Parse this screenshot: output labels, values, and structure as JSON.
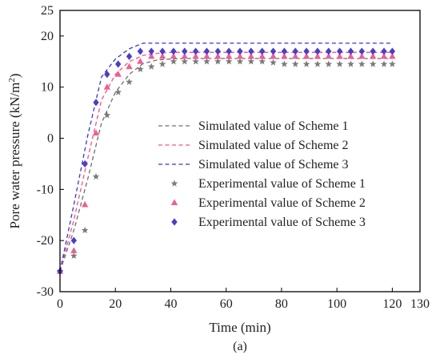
{
  "chart_data": {
    "type": "line",
    "title": "",
    "subtitle": "",
    "xlabel": "Time (min)",
    "ylabel": "Pore water pressure (kN/m²)",
    "ylabel_parts": {
      "main": "Pore water pressure (kN/m",
      "sup": "2",
      "close": ")"
    },
    "xlim": [
      0,
      130
    ],
    "ylim": [
      -30,
      25
    ],
    "x_ticks": [
      0,
      20,
      40,
      60,
      80,
      100,
      120,
      130
    ],
    "y_ticks": [
      -30,
      -20,
      -10,
      0,
      10,
      20,
      25
    ],
    "grid": false,
    "legend_position": "center-right",
    "caption": "(a)",
    "series": [
      {
        "name": "Simulated value of Scheme 1",
        "kind": "line",
        "color": "#6e6e6e",
        "x": [
          0,
          5,
          10,
          15,
          20,
          25,
          30,
          35,
          40,
          45,
          50,
          60,
          80,
          100,
          120
        ],
        "y": [
          -26,
          -18,
          -8,
          3,
          9,
          12.5,
          14.6,
          15.3,
          15.5,
          15.6,
          15.6,
          15.6,
          15.6,
          15.6,
          15.6
        ]
      },
      {
        "name": "Simulated value of Scheme 2",
        "kind": "line",
        "color": "#f3508a",
        "x": [
          0,
          5,
          10,
          15,
          20,
          25,
          30,
          35,
          40,
          45,
          50,
          60,
          80,
          100,
          120
        ],
        "y": [
          -26,
          -16,
          -4,
          7.5,
          12.5,
          15,
          16.2,
          16.6,
          16.8,
          16.8,
          16.8,
          16.8,
          16.8,
          16.8,
          16.8
        ]
      },
      {
        "name": "Simulated value of Scheme 3",
        "kind": "line",
        "color": "#3b37c8",
        "x": [
          0,
          5,
          10,
          15,
          20,
          25,
          30,
          35,
          40,
          45,
          50,
          60,
          80,
          100,
          120
        ],
        "y": [
          -26,
          -13,
          0.5,
          12,
          15.5,
          17.5,
          18.6,
          18.6,
          18.6,
          18.6,
          18.6,
          18.6,
          18.6,
          18.6,
          18.6
        ]
      },
      {
        "name": "Experimental value of Scheme 1",
        "kind": "marker",
        "marker": "star",
        "color": "#7a7a7a",
        "x": [
          0,
          5,
          9,
          13,
          17,
          21,
          25,
          29,
          33,
          37,
          41,
          45,
          49,
          53,
          57,
          61,
          65,
          69,
          73,
          77,
          81,
          85,
          89,
          93,
          97,
          101,
          105,
          109,
          113,
          117,
          120
        ],
        "y": [
          -26,
          -23,
          -18,
          -7.5,
          4.5,
          9,
          11,
          13.5,
          14,
          14.5,
          15,
          15,
          15,
          15,
          15,
          15,
          15,
          15,
          15,
          14.8,
          14.5,
          14.5,
          14.5,
          14.5,
          14.5,
          14.5,
          14.5,
          14.5,
          14.5,
          14.5,
          14.5
        ]
      },
      {
        "name": "Experimental value of Scheme 2",
        "kind": "marker",
        "marker": "triangle",
        "color": "#ef5d97",
        "x": [
          0,
          5,
          9,
          13,
          17,
          21,
          25,
          29,
          33,
          37,
          41,
          45,
          49,
          53,
          57,
          61,
          65,
          69,
          73,
          77,
          81,
          85,
          89,
          93,
          97,
          101,
          105,
          109,
          113,
          117,
          120
        ],
        "y": [
          -26,
          -22,
          -13,
          1,
          10,
          12.5,
          14,
          15,
          16,
          16,
          16,
          16,
          16,
          16,
          16,
          16,
          16,
          16,
          16,
          16,
          16,
          16,
          16,
          16,
          16,
          16,
          16,
          16,
          16,
          16,
          16
        ]
      },
      {
        "name": "Experimental value of Scheme 3",
        "kind": "marker",
        "marker": "diamond",
        "color": "#4a3fc4",
        "x": [
          0,
          5,
          9,
          13,
          17,
          21,
          25,
          29,
          33,
          37,
          41,
          45,
          49,
          53,
          57,
          61,
          65,
          69,
          73,
          77,
          81,
          85,
          89,
          93,
          97,
          101,
          105,
          109,
          113,
          117,
          120
        ],
        "y": [
          -26,
          -20,
          -5,
          7,
          12.5,
          14.5,
          16,
          17,
          17,
          17,
          17,
          17,
          17,
          17,
          17,
          17,
          17,
          17,
          17,
          17,
          17,
          17,
          17,
          17,
          17,
          17,
          17,
          17,
          17,
          17,
          17
        ]
      }
    ]
  }
}
